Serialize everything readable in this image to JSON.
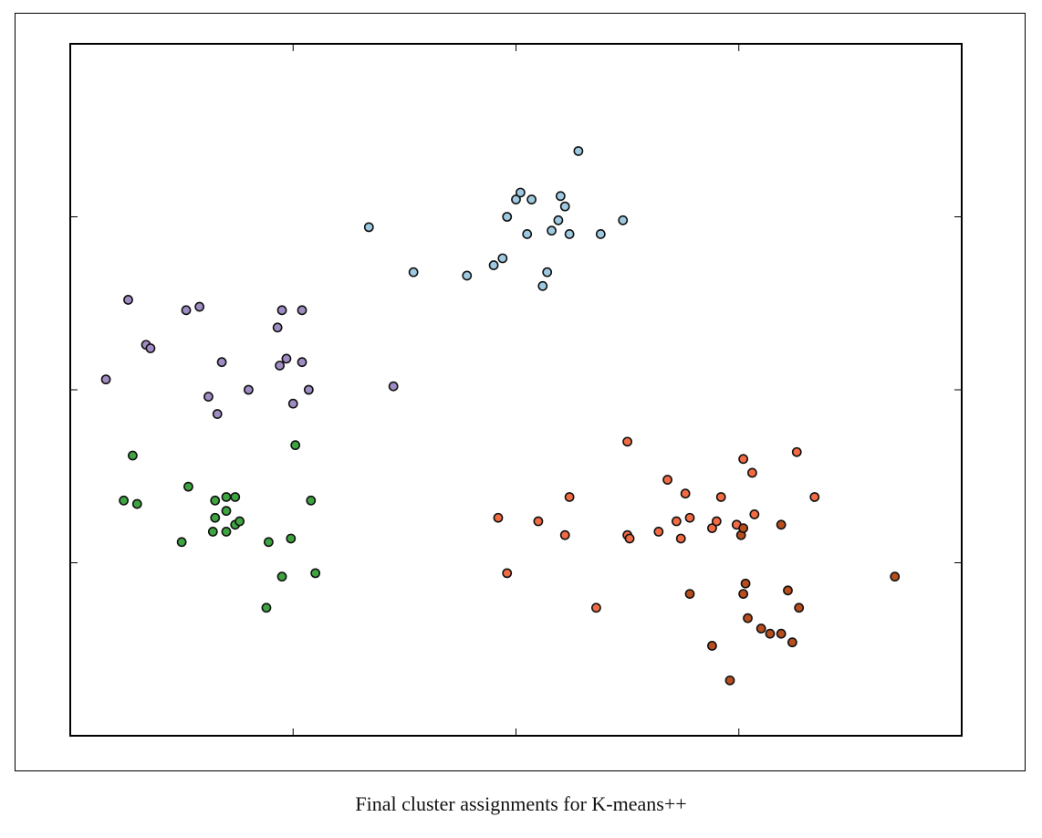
{
  "caption": "Final cluster assignments for K-means++",
  "colors": {
    "purple": "#a08cc4",
    "blue": "#9ecae1",
    "green": "#3ea441",
    "orange": "#f26b43",
    "brown": "#b84e1e",
    "point_edge": "#111111"
  },
  "chart_data": {
    "type": "scatter",
    "title": "",
    "xlabel": "",
    "ylabel": "",
    "xlim": [
      -5,
      15
    ],
    "ylim": [
      -5,
      15
    ],
    "xticks": [
      0,
      5,
      10,
      15
    ],
    "yticks": [
      0,
      5,
      10,
      15
    ],
    "grid": false,
    "series": [
      {
        "color": "purple",
        "points": [
          [
            -4.2,
            5.3
          ],
          [
            -3.7,
            7.6
          ],
          [
            -3.3,
            6.3
          ],
          [
            -3.2,
            6.2
          ],
          [
            -2.4,
            7.3
          ],
          [
            -2.1,
            7.4
          ],
          [
            -1.9,
            4.8
          ],
          [
            -1.7,
            4.3
          ],
          [
            -1.6,
            5.8
          ],
          [
            -1.0,
            5.0
          ],
          [
            -0.35,
            6.8
          ],
          [
            -0.3,
            5.7
          ],
          [
            -0.25,
            7.3
          ],
          [
            -0.15,
            5.9
          ],
          [
            0.0,
            4.6
          ],
          [
            0.2,
            5.8
          ],
          [
            0.2,
            7.3
          ],
          [
            0.35,
            5.0
          ],
          [
            2.25,
            5.1
          ]
        ]
      },
      {
        "color": "blue",
        "points": [
          [
            1.7,
            9.7
          ],
          [
            2.7,
            8.4
          ],
          [
            3.9,
            8.3
          ],
          [
            4.5,
            8.6
          ],
          [
            4.7,
            8.8
          ],
          [
            4.8,
            10.0
          ],
          [
            5.0,
            10.5
          ],
          [
            5.1,
            10.7
          ],
          [
            5.25,
            9.5
          ],
          [
            5.35,
            10.5
          ],
          [
            5.6,
            8.0
          ],
          [
            5.7,
            8.4
          ],
          [
            5.8,
            9.6
          ],
          [
            5.95,
            9.9
          ],
          [
            6.0,
            10.6
          ],
          [
            6.1,
            10.3
          ],
          [
            6.2,
            9.5
          ],
          [
            6.4,
            11.9
          ],
          [
            6.9,
            9.5
          ],
          [
            7.4,
            9.9
          ]
        ]
      },
      {
        "color": "green",
        "points": [
          [
            -3.8,
            1.8
          ],
          [
            -3.5,
            1.7
          ],
          [
            -3.6,
            3.1
          ],
          [
            -2.5,
            0.6
          ],
          [
            -2.35,
            2.2
          ],
          [
            -1.8,
            0.9
          ],
          [
            -1.75,
            1.3
          ],
          [
            -1.75,
            1.8
          ],
          [
            -1.5,
            1.9
          ],
          [
            -1.5,
            1.5
          ],
          [
            -1.5,
            0.9
          ],
          [
            -1.3,
            1.9
          ],
          [
            -1.3,
            1.1
          ],
          [
            -1.2,
            1.2
          ],
          [
            -0.55,
            0.6
          ],
          [
            -0.25,
            -0.4
          ],
          [
            -0.05,
            0.7
          ],
          [
            0.05,
            3.4
          ],
          [
            0.4,
            1.8
          ],
          [
            0.5,
            -0.3
          ],
          [
            -0.6,
            -1.3
          ]
        ]
      },
      {
        "color": "orange",
        "points": [
          [
            4.6,
            1.3
          ],
          [
            4.8,
            -0.3
          ],
          [
            5.5,
            1.2
          ],
          [
            6.1,
            0.8
          ],
          [
            6.2,
            1.9
          ],
          [
            6.8,
            -1.3
          ],
          [
            7.5,
            0.8
          ],
          [
            7.55,
            0.7
          ],
          [
            7.5,
            3.5
          ],
          [
            8.2,
            0.9
          ],
          [
            8.4,
            2.4
          ],
          [
            8.6,
            1.2
          ],
          [
            8.7,
            0.7
          ],
          [
            8.8,
            2.0
          ],
          [
            8.9,
            1.3
          ],
          [
            9.4,
            1.0
          ],
          [
            9.5,
            1.2
          ],
          [
            9.6,
            1.9
          ],
          [
            9.95,
            1.1
          ],
          [
            10.1,
            3.0
          ],
          [
            10.3,
            2.6
          ],
          [
            10.35,
            1.4
          ],
          [
            11.3,
            3.2
          ],
          [
            11.7,
            1.9
          ]
        ]
      },
      {
        "color": "brown",
        "points": [
          [
            8.9,
            -0.9
          ],
          [
            9.4,
            -2.4
          ],
          [
            9.8,
            -3.4
          ],
          [
            10.05,
            0.8
          ],
          [
            10.1,
            1.0
          ],
          [
            10.1,
            -0.9
          ],
          [
            10.15,
            -0.6
          ],
          [
            10.2,
            -1.6
          ],
          [
            10.5,
            -1.9
          ],
          [
            10.7,
            -2.05
          ],
          [
            10.95,
            -2.05
          ],
          [
            10.95,
            1.1
          ],
          [
            11.1,
            -0.8
          ],
          [
            11.2,
            -2.3
          ],
          [
            11.35,
            -1.3
          ],
          [
            13.5,
            -0.4
          ]
        ]
      }
    ]
  }
}
